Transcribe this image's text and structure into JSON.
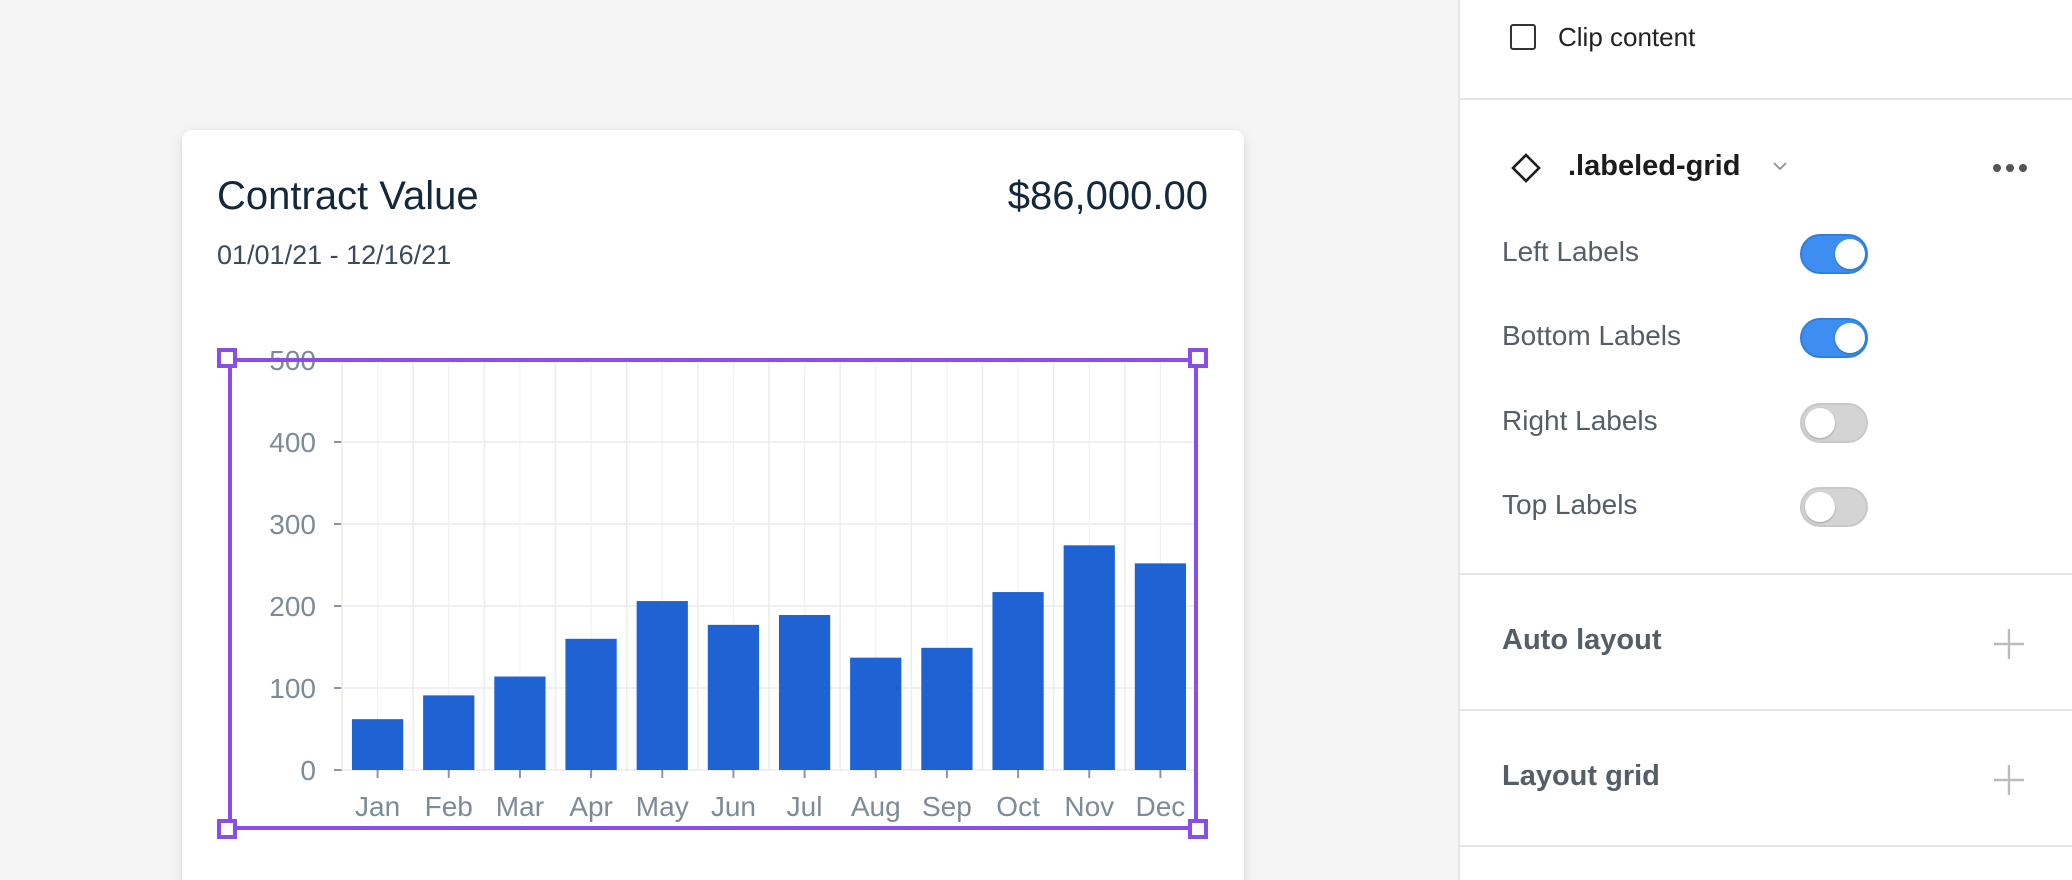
{
  "card": {
    "title": "Contract Value",
    "value": "$86,000.00",
    "range": "01/01/21 - 12/16/21"
  },
  "chart_data": {
    "type": "bar",
    "categories": [
      "Jan",
      "Feb",
      "Mar",
      "Apr",
      "May",
      "Jun",
      "Jul",
      "Aug",
      "Sep",
      "Oct",
      "Nov",
      "Dec"
    ],
    "values": [
      62,
      91,
      114,
      160,
      206,
      177,
      189,
      137,
      149,
      217,
      274,
      252
    ],
    "ylim": [
      0,
      500
    ],
    "yticks": [
      "0",
      "100",
      "200",
      "300",
      "400",
      "500"
    ],
    "grid": true,
    "bar_color": "#1e62d4"
  },
  "panel": {
    "clip_content_label": "Clip content",
    "component_name": ".labeled-grid",
    "properties": [
      {
        "label": "Left Labels",
        "on": true
      },
      {
        "label": "Bottom Labels",
        "on": true
      },
      {
        "label": "Right Labels",
        "on": false
      },
      {
        "label": "Top Labels",
        "on": false
      }
    ],
    "auto_layout_label": "Auto layout",
    "layout_grid_label": "Layout grid"
  },
  "colors": {
    "selection": "#8a4ee6",
    "toggle_on": "#3d8ef0",
    "toggle_off": "#d4d4d4"
  }
}
